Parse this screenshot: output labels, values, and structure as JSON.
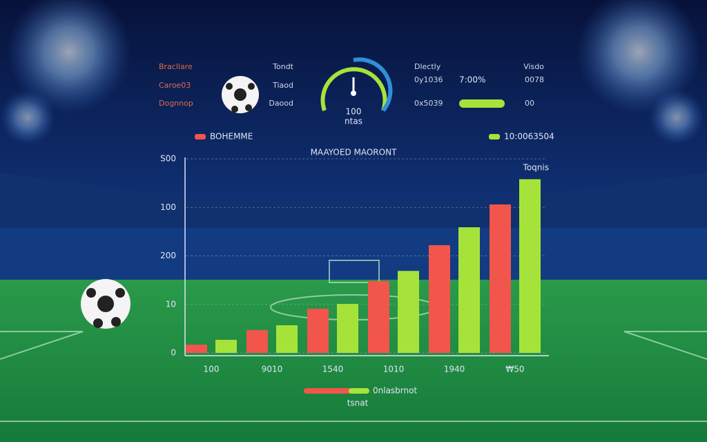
{
  "chart_data": {
    "type": "bar",
    "title": "MAAYOED MAORONT",
    "corner_label": "Toqnis",
    "categories": [
      "100",
      "9010",
      "1540",
      "1010",
      "1940",
      "₩50"
    ],
    "series": [
      {
        "name": "BOHEMME",
        "color": "#f2554b",
        "values": [
          17,
          47,
          91,
          148,
          222,
          306
        ]
      },
      {
        "name": "10:0063504",
        "color": "#a6e33a",
        "values": [
          27,
          57,
          101,
          169,
          259,
          358
        ]
      }
    ],
    "ylim": [
      0,
      400
    ],
    "yticks": [
      0,
      {
        "value": 100,
        "label": "10"
      },
      200,
      {
        "value": 300,
        "label": "100"
      },
      {
        "value": 400,
        "label": "S00"
      }
    ],
    "grid": true
  },
  "scoreboard": {
    "left_labels": [
      "Bracllare",
      "Caroe03",
      "Dognnop"
    ],
    "left_values": [
      "Tondt",
      "Tiaod",
      "Daood"
    ],
    "gauge_value": "100",
    "gauge_caption": "ntas",
    "right_labels": [
      "Dlectly",
      "0y1036",
      "0x5039"
    ],
    "right_big": "7:00%",
    "right_values": [
      "Visdo",
      "0078",
      "00"
    ]
  },
  "footer": {
    "label": "0nlasbrnot",
    "caption": "tsnat"
  }
}
